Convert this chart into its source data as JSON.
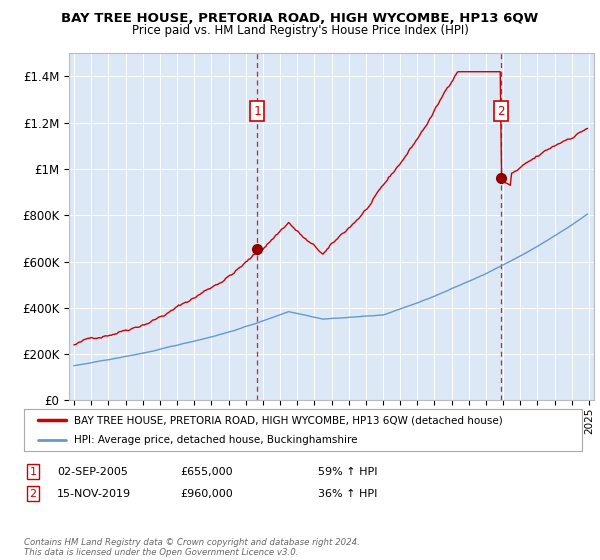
{
  "title": "BAY TREE HOUSE, PRETORIA ROAD, HIGH WYCOMBE, HP13 6QW",
  "subtitle": "Price paid vs. HM Land Registry's House Price Index (HPI)",
  "bg_color": "#dce8f5",
  "plot_bg_color": "#dce8f5",
  "red_line_color": "#cc0000",
  "blue_line_color": "#6699cc",
  "marker1_x": 2005.67,
  "marker1_y": 655000,
  "marker2_x": 2019.88,
  "marker2_y": 960000,
  "ylabel_ticks": [
    "£0",
    "£200K",
    "£400K",
    "£600K",
    "£800K",
    "£1M",
    "£1.2M",
    "£1.4M"
  ],
  "ylabel_values": [
    0,
    200000,
    400000,
    600000,
    800000,
    1000000,
    1200000,
    1400000
  ],
  "ylim": [
    0,
    1500000
  ],
  "xlim_min": 1994.7,
  "xlim_max": 2025.3,
  "xticks": [
    1995,
    1996,
    1997,
    1998,
    1999,
    2000,
    2001,
    2002,
    2003,
    2004,
    2005,
    2006,
    2007,
    2008,
    2009,
    2010,
    2011,
    2012,
    2013,
    2014,
    2015,
    2016,
    2017,
    2018,
    2019,
    2020,
    2021,
    2022,
    2023,
    2024,
    2025
  ],
  "legend_label_red": "BAY TREE HOUSE, PRETORIA ROAD, HIGH WYCOMBE, HP13 6QW (detached house)",
  "legend_label_blue": "HPI: Average price, detached house, Buckinghamshire",
  "footnote1_label": "1",
  "footnote1_date": "02-SEP-2005",
  "footnote1_price": "£655,000",
  "footnote1_hpi": "59% ↑ HPI",
  "footnote2_label": "2",
  "footnote2_date": "15-NOV-2019",
  "footnote2_price": "£960,000",
  "footnote2_hpi": "36% ↑ HPI",
  "copyright_text": "Contains HM Land Registry data © Crown copyright and database right 2024.\nThis data is licensed under the Open Government Licence v3.0."
}
